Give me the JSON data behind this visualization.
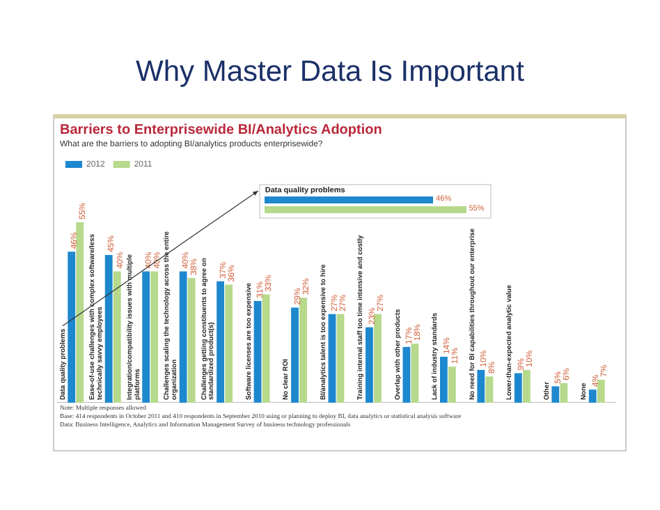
{
  "chart_data": {
    "type": "bar",
    "title": "Why Master Data Is Important",
    "subtitle": "Barriers to Enterprisewide BI/Analytics Adoption",
    "categories": [
      "Data quality problems",
      "Ease-of-use challenges with complex software/less technically savvy employees",
      "Integration/compatibility issues with multiple platforms",
      "Challenges scaling the technology across the entire organization",
      "Challenges getting constituents to agree on standardized product(s)",
      "Software licenses are too expensive",
      "No clear ROI",
      "BI/analytics talent is too expensive to hire",
      "Training internal staff too time intensive and costly",
      "Overlap with other products",
      "Lack of industry standards",
      "No need for BI capabilities throughout our enterprise",
      "Lower-than-expected analytic value",
      "Other",
      "None"
    ],
    "series": [
      {
        "name": "2012",
        "color": "#1e88cf",
        "values": [
          46,
          45,
          40,
          40,
          37,
          31,
          29,
          27,
          23,
          17,
          14,
          10,
          9,
          5,
          4
        ],
        "value_labels": [
          "46%",
          "45%",
          "40%",
          "40%",
          "37%",
          "31%",
          "29%",
          "27%",
          "23%",
          "17%",
          "14%",
          "10%",
          "9%",
          "5%",
          "4%"
        ]
      },
      {
        "name": "2011",
        "color": "#b6d98c",
        "values": [
          55,
          40,
          40,
          38,
          36,
          33,
          32,
          27,
          27,
          18,
          11,
          8,
          10,
          6,
          7
        ],
        "value_labels": [
          "55%",
          "40%",
          "40%",
          "38%",
          "36%",
          "33%",
          "32%",
          "27%",
          "27%",
          "18%",
          "11%",
          "8%",
          "10%",
          "6%",
          "7%"
        ]
      }
    ],
    "legend": "top left",
    "grid": false,
    "annotations": [
      "What are the barriers to adopting BI/analytics products enterprisewide?",
      "Note: Multiple responses allowed",
      "Base: 414 respondents in October 2011 and 410 respondents in September 2010 using or planning to deploy BI, data analytics or statistical analysis software",
      "Data: Business Intelligence, Analytics and Information Management Survey of business technology professionals"
    ]
  }
}
